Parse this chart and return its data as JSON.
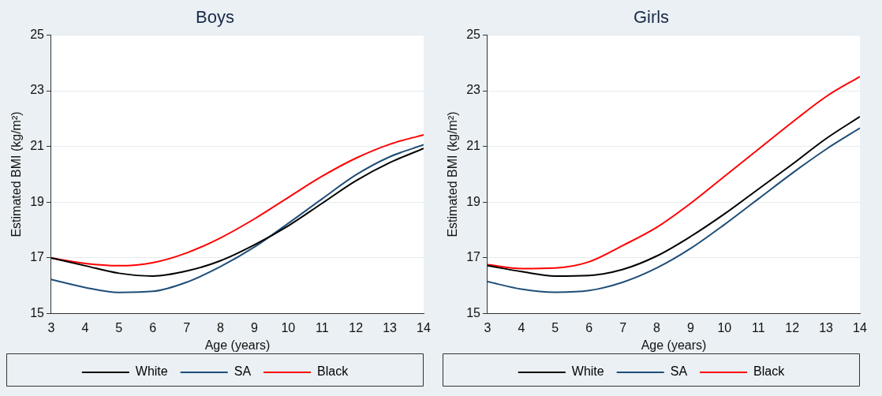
{
  "chart_data": [
    {
      "type": "line",
      "title": "Boys",
      "xlabel": "Age (years)",
      "ylabel": "Estimated BMI (kg/m²)",
      "x": [
        3,
        4,
        5,
        6,
        7,
        8,
        9,
        10,
        11,
        12,
        13,
        14
      ],
      "xlim": [
        3,
        14
      ],
      "xticks": [
        3,
        4,
        5,
        6,
        7,
        8,
        9,
        10,
        11,
        12,
        13,
        14
      ],
      "ylim": [
        15,
        25
      ],
      "yticks": [
        15,
        17,
        19,
        21,
        23,
        25
      ],
      "grid": "y",
      "legend": "bottom",
      "marker": "none",
      "line_style": "solid",
      "series": [
        {
          "name": "White",
          "color": "#000000",
          "values": [
            17.0,
            16.72,
            16.45,
            16.35,
            16.53,
            16.9,
            17.47,
            18.15,
            18.96,
            19.77,
            20.42,
            20.93
          ]
        },
        {
          "name": "SA",
          "color": "#1f4e79",
          "values": [
            16.23,
            15.94,
            15.76,
            15.8,
            16.13,
            16.69,
            17.39,
            18.24,
            19.12,
            19.98,
            20.63,
            21.06
          ]
        },
        {
          "name": "Black",
          "color": "#ff0000",
          "values": [
            17.0,
            16.8,
            16.72,
            16.83,
            17.18,
            17.72,
            18.4,
            19.17,
            19.93,
            20.58,
            21.08,
            21.42
          ]
        }
      ]
    },
    {
      "type": "line",
      "title": "Girls",
      "xlabel": "Age (years)",
      "ylabel": "Estimated BMI (kg/m²)",
      "x": [
        3,
        4,
        5,
        6,
        7,
        8,
        9,
        10,
        11,
        12,
        13,
        14
      ],
      "xlim": [
        3,
        14
      ],
      "xticks": [
        3,
        4,
        5,
        6,
        7,
        8,
        9,
        10,
        11,
        12,
        13,
        14
      ],
      "ylim": [
        15,
        25
      ],
      "yticks": [
        15,
        17,
        19,
        21,
        23,
        25
      ],
      "grid": "y",
      "legend": "bottom",
      "marker": "none",
      "line_style": "solid",
      "series": [
        {
          "name": "White",
          "color": "#000000",
          "values": [
            16.72,
            16.51,
            16.35,
            16.37,
            16.59,
            17.07,
            17.77,
            18.58,
            19.47,
            20.36,
            21.28,
            22.07
          ]
        },
        {
          "name": "SA",
          "color": "#1f4e79",
          "values": [
            16.15,
            15.88,
            15.77,
            15.83,
            16.13,
            16.64,
            17.34,
            18.2,
            19.12,
            20.04,
            20.9,
            21.66
          ]
        },
        {
          "name": "Black",
          "color": "#ff0000",
          "values": [
            16.76,
            16.62,
            16.64,
            16.86,
            17.45,
            18.1,
            18.96,
            19.93,
            20.9,
            21.87,
            22.79,
            23.51
          ]
        }
      ]
    }
  ]
}
